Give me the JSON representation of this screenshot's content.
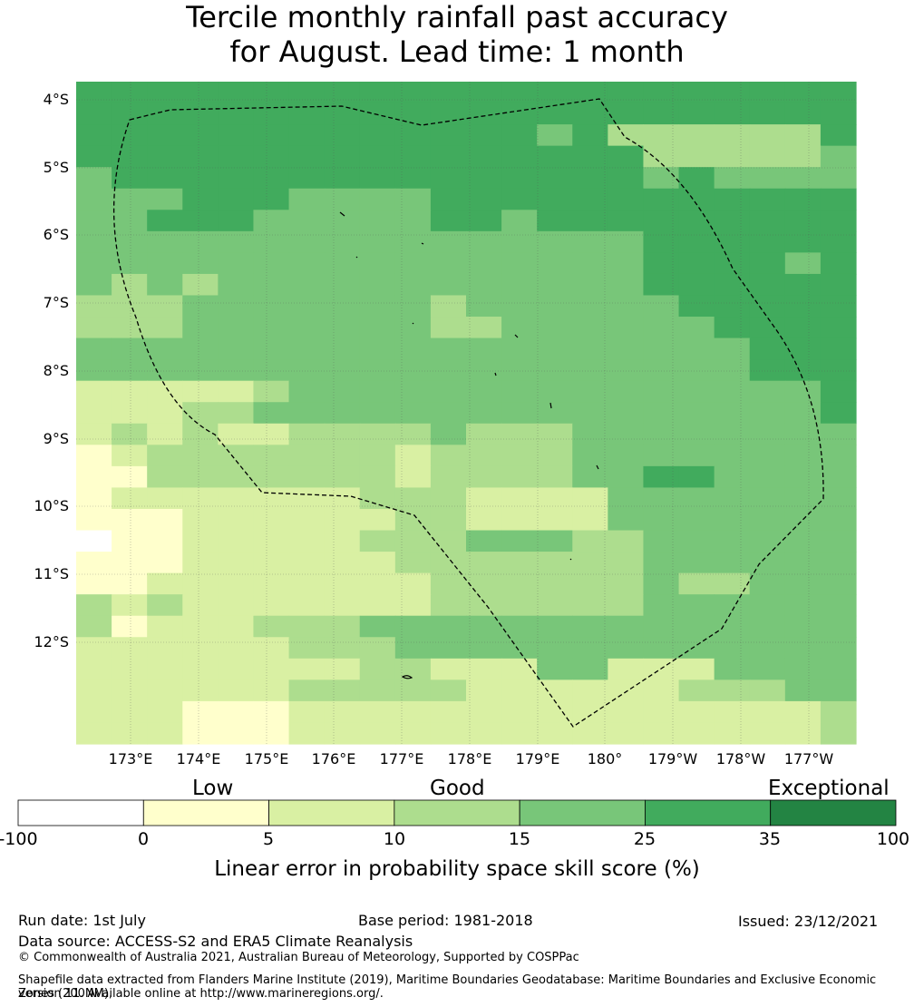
{
  "title": {
    "line1": "Tercile monthly rainfall past accuracy",
    "line2": "for August. Lead time: 1 month"
  },
  "map": {
    "lat_labels": [
      "4°S",
      "5°S",
      "6°S",
      "7°S",
      "8°S",
      "9°S",
      "10°S",
      "11°S",
      "12°S"
    ],
    "lon_labels": [
      "173°E",
      "174°E",
      "175°E",
      "176°E",
      "177°E",
      "178°E",
      "179°E",
      "180°",
      "179°W",
      "178°W",
      "177°W"
    ],
    "class_colors": [
      "#ffffff",
      "#ffffcc",
      "#d9f0a3",
      "#addd8e",
      "#78c679",
      "#41ab5d",
      "#238443"
    ],
    "boundary_color": "#000000",
    "grid_rows": [
      "5555555555555555555555",
      "5555555555555555555555",
      "5555555555555453333335",
      "5555555555555555333334",
      "4555555555555555454444",
      "4445554444555555555555",
      "4455544444554555555555",
      "4444444444444444555555",
      "4444444444444444555545",
      "4343444444444444555555",
      "3334444444344444455555",
      "3334444444334444445555",
      "4444444444444444444555",
      "4444444444444444444555",
      "2222234444444444444445",
      "2223344444444444444445",
      "2323223333433344444444",
      "1233333332333344444444",
      "1133333332333344554444",
      "1222222233322224444444",
      "1112222223322224444444",
      "0112222233344433444444",
      "1112222223333333444444",
      "1122222222333333433444",
      "3232222222333333444444",
      "3122233344444444444444",
      "2222223334444444444444",
      "2222222233222442224444",
      "2222223333322222233344",
      "2221112222222222222223",
      "2221112222222222222223"
    ]
  },
  "colorbar": {
    "categories": [
      "Low",
      "Good",
      "Exceptional"
    ],
    "ticks": [
      "-100",
      "0",
      "5",
      "10",
      "15",
      "25",
      "35",
      "100"
    ],
    "colors": [
      "#ffffff",
      "#ffffcc",
      "#d9f0a3",
      "#addd8e",
      "#78c679",
      "#41ab5d",
      "#238443"
    ],
    "title": "Linear error in probability space skill score (%)"
  },
  "footer": {
    "run_date": "Run date: 1st July",
    "base_period": "Base period: 1981-2018",
    "issued": "Issued: 23/12/2021",
    "data_source": "Data source: ACCESS-S2 and ERA5 Climate Reanalysis",
    "copyright": "© Commonwealth of Australia 2021, Australian Bureau of Meteorology, Supported by COSPPac",
    "shapefile_line1": "Shapefile data extracted from Flanders Marine Institute (2019), Maritime Boundaries Geodatabase: Maritime Boundaries and Exclusive Economic Zones (200NM),",
    "shapefile_line2": "version 11. Available online at http://www.marineregions.org/."
  }
}
